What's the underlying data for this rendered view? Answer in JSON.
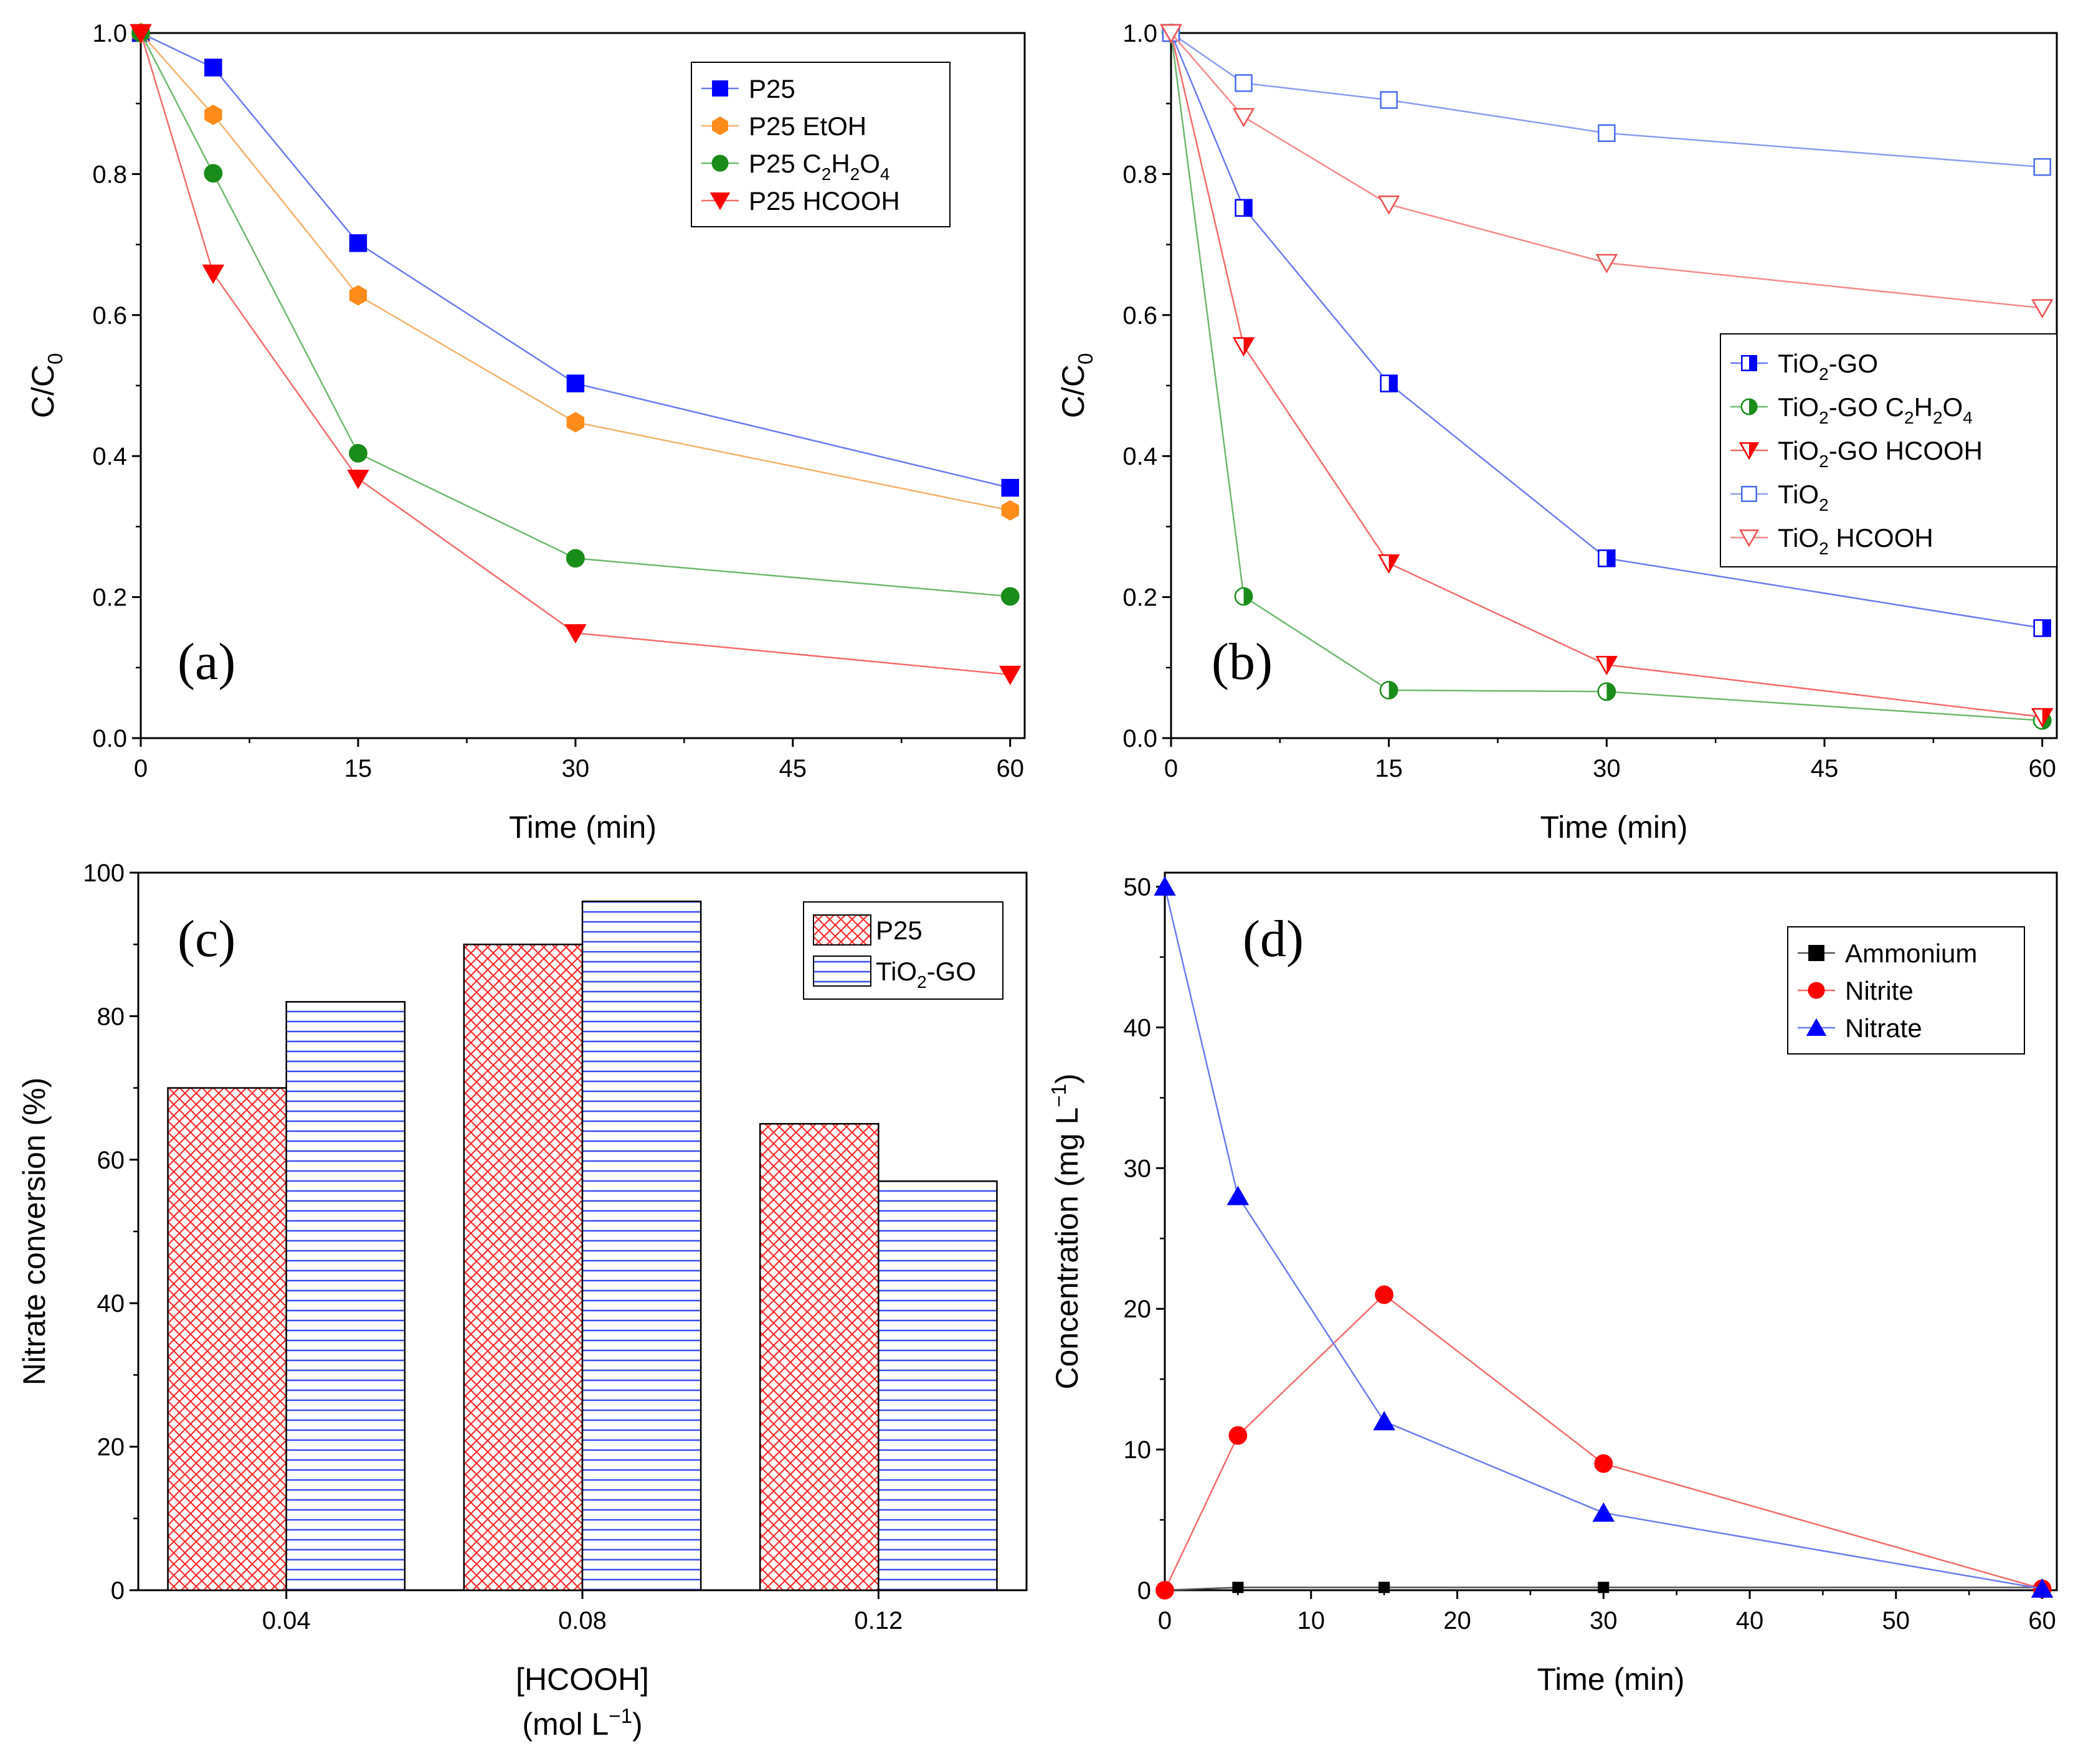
{
  "chart_data": [
    {
      "id": "a",
      "type": "line",
      "panel_label": "(a)",
      "xlabel": "Time (min)",
      "ylabel": "C/C0",
      "ylabel_base": "C/C",
      "ylabel_sub": "0",
      "xlim": [
        0,
        61
      ],
      "ylim": [
        0,
        1.0
      ],
      "xticks": [
        "0",
        "15",
        "30",
        "45",
        "60"
      ],
      "xtick_values": [
        0,
        15,
        30,
        45,
        60
      ],
      "yticks": [
        "0.0",
        "0.2",
        "0.4",
        "0.6",
        "0.8",
        "1.0"
      ],
      "ytick_values": [
        0,
        0.2,
        0.4,
        0.6,
        0.8,
        1.0
      ],
      "legend_position": "top-right",
      "x": [
        0,
        5,
        15,
        30,
        60
      ],
      "series": [
        {
          "name": "P25",
          "label_parts": [
            [
              "P25",
              ""
            ]
          ],
          "color": "#0000ff",
          "line": "#6b7bf0",
          "marker": "square",
          "fill": "full",
          "values": [
            1.0,
            0.951,
            0.702,
            0.503,
            0.355
          ]
        },
        {
          "name": "P25 EtOH",
          "label_parts": [
            [
              "P25 EtOH",
              ""
            ]
          ],
          "color": "#ff8c1a",
          "line": "#f5b26b",
          "marker": "hexagon",
          "fill": "full",
          "values": [
            1.0,
            0.884,
            0.628,
            0.448,
            0.323
          ]
        },
        {
          "name": "P25 C2H2O4",
          "label_parts": [
            [
              "P25 C",
              ""
            ],
            [
              "2",
              "sub"
            ],
            [
              "H",
              ""
            ],
            [
              "2",
              "sub"
            ],
            [
              "O",
              ""
            ],
            [
              "4",
              "sub"
            ]
          ],
          "color": "#1a8c1a",
          "line": "#6fb86f",
          "marker": "circle",
          "fill": "full",
          "values": [
            1.0,
            0.801,
            0.404,
            0.255,
            0.201
          ]
        },
        {
          "name": "P25 HCOOH",
          "label_parts": [
            [
              "P25 HCOOH",
              ""
            ]
          ],
          "color": "#ff0000",
          "line": "#f56b6b",
          "marker": "triangle-down",
          "fill": "full",
          "values": [
            1.0,
            0.659,
            0.368,
            0.149,
            0.09
          ]
        }
      ]
    },
    {
      "id": "b",
      "type": "line",
      "panel_label": "(b)",
      "xlabel": "Time (min)",
      "ylabel": "C/C0",
      "ylabel_base": "C/C",
      "ylabel_sub": "0",
      "xlim": [
        0,
        61
      ],
      "ylim": [
        0,
        1.0
      ],
      "xticks": [
        "0",
        "15",
        "30",
        "45",
        "60"
      ],
      "xtick_values": [
        0,
        15,
        30,
        45,
        60
      ],
      "yticks": [
        "0.0",
        "0.2",
        "0.4",
        "0.6",
        "0.8",
        "1.0"
      ],
      "ytick_values": [
        0,
        0.2,
        0.4,
        0.6,
        0.8,
        1.0
      ],
      "legend_position": "middle-right",
      "x": [
        0,
        5,
        15,
        30,
        60
      ],
      "series": [
        {
          "name": "TiO2-GO",
          "label_parts": [
            [
              "TiO",
              ""
            ],
            [
              "2",
              "sub"
            ],
            [
              "-GO",
              ""
            ]
          ],
          "color": "#0000ff",
          "line": "#6b7bf0",
          "marker": "square",
          "fill": "half",
          "values": [
            1.0,
            0.752,
            0.503,
            0.255,
            0.156
          ]
        },
        {
          "name": "TiO2-GO C2H2O4",
          "label_parts": [
            [
              "TiO",
              ""
            ],
            [
              "2",
              "sub"
            ],
            [
              "-GO C",
              ""
            ],
            [
              "2",
              "sub"
            ],
            [
              "H",
              ""
            ],
            [
              "2",
              "sub"
            ],
            [
              "O",
              ""
            ],
            [
              "4",
              "sub"
            ]
          ],
          "color": "#1a8c1a",
          "line": "#6fb86f",
          "marker": "circle",
          "fill": "half",
          "values": [
            1.0,
            0.201,
            0.068,
            0.066,
            0.025
          ]
        },
        {
          "name": "TiO2-GO HCOOH",
          "label_parts": [
            [
              "TiO",
              ""
            ],
            [
              "2",
              "sub"
            ],
            [
              "-GO HCOOH",
              ""
            ]
          ],
          "color": "#ff0000",
          "line": "#f56b6b",
          "marker": "triangle-down",
          "fill": "half",
          "values": [
            1.0,
            0.556,
            0.248,
            0.104,
            0.03
          ]
        },
        {
          "name": "TiO2",
          "label_parts": [
            [
              "TiO",
              ""
            ],
            [
              "2",
              "sub"
            ]
          ],
          "color": "#4a6cf0",
          "line": "#8a9cf0",
          "marker": "square",
          "fill": "open",
          "values": [
            1.0,
            0.929,
            0.905,
            0.858,
            0.81
          ]
        },
        {
          "name": "TiO2 HCOOH",
          "label_parts": [
            [
              "TiO",
              ""
            ],
            [
              "2",
              "sub"
            ],
            [
              " HCOOH",
              ""
            ]
          ],
          "color": "#f05050",
          "line": "#f58a8a",
          "marker": "triangle-down",
          "fill": "open",
          "values": [
            1.0,
            0.881,
            0.757,
            0.674,
            0.61
          ]
        }
      ]
    },
    {
      "id": "c",
      "type": "bar",
      "panel_label": "(c)",
      "xlabel": "[HCOOH]",
      "xlabel_line2_base": "(mol L",
      "xlabel_line2_sup": "−1",
      "xlabel_line2_end": ")",
      "ylabel": "Nitrate conversion (%)",
      "ylim": [
        0,
        100
      ],
      "yticks": [
        "0",
        "20",
        "40",
        "60",
        "80",
        "100"
      ],
      "ytick_values": [
        0,
        20,
        40,
        60,
        80,
        100
      ],
      "categories": [
        "0.04",
        "0.08",
        "0.12"
      ],
      "legend_position": "top-right",
      "series": [
        {
          "name": "P25",
          "label_parts": [
            [
              "P25",
              ""
            ]
          ],
          "color": "#ff0000",
          "pattern": "crosshatch",
          "values": [
            70,
            90,
            65
          ]
        },
        {
          "name": "TiO2-GO",
          "label_parts": [
            [
              "TiO",
              ""
            ],
            [
              "2",
              "sub"
            ],
            [
              "-GO",
              ""
            ]
          ],
          "color": "#0000ff",
          "pattern": "horizontal",
          "values": [
            82,
            96,
            57
          ]
        }
      ]
    },
    {
      "id": "d",
      "type": "line",
      "panel_label": "(d)",
      "xlabel": "Time (min)",
      "ylabel": "Concentration (mg L−1)",
      "ylabel_base": "Concentration (mg L",
      "ylabel_sup": "−1",
      "ylabel_end": ")",
      "xlim": [
        0,
        61
      ],
      "ylim": [
        0,
        51
      ],
      "xticks": [
        "0",
        "10",
        "20",
        "30",
        "40",
        "50",
        "60"
      ],
      "xtick_values": [
        0,
        10,
        20,
        30,
        40,
        50,
        60
      ],
      "yticks": [
        "0",
        "10",
        "20",
        "30",
        "40",
        "50"
      ],
      "ytick_values": [
        0,
        10,
        20,
        30,
        40,
        50
      ],
      "legend_position": "top-right",
      "x": [
        0,
        5,
        15,
        30,
        60
      ],
      "series": [
        {
          "name": "Ammonium",
          "label_parts": [
            [
              "Ammonium",
              ""
            ]
          ],
          "color": "#000000",
          "line": "#555555",
          "marker": "square",
          "fill": "full",
          "size": 0.6,
          "values": [
            0,
            0.2,
            0.2,
            0.2,
            0.2
          ]
        },
        {
          "name": "Nitrite",
          "label_parts": [
            [
              "Nitrite",
              ""
            ]
          ],
          "color": "#ff0000",
          "line": "#f56b6b",
          "marker": "circle",
          "fill": "full",
          "values": [
            0,
            11,
            21,
            9,
            0.1
          ]
        },
        {
          "name": "Nitrate",
          "label_parts": [
            [
              "Nitrate",
              ""
            ]
          ],
          "color": "#0000ff",
          "line": "#6b7bf0",
          "marker": "triangle-up",
          "fill": "full",
          "values": [
            50,
            28,
            12,
            5.5,
            0.1
          ]
        }
      ]
    }
  ]
}
